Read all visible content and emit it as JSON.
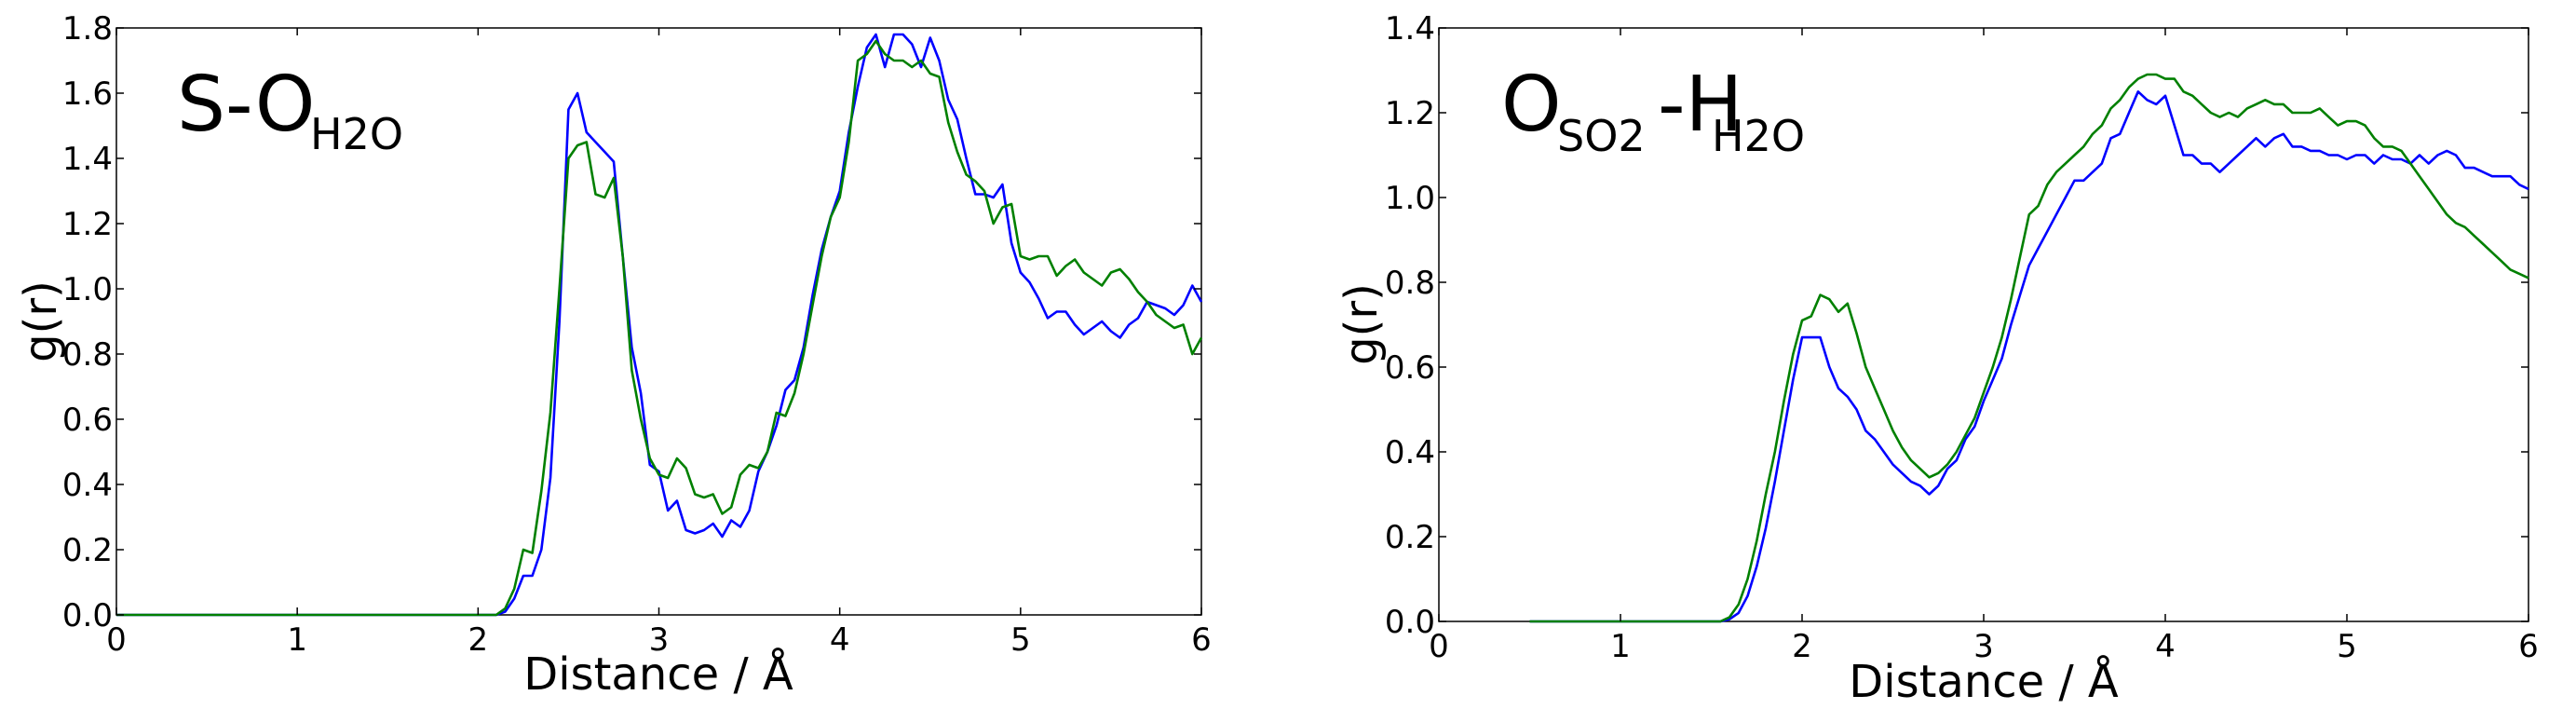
{
  "colors": {
    "series_a": "#0000ff",
    "series_b": "#008000",
    "axes": "#000000"
  },
  "chart_data": [
    {
      "type": "line",
      "title": {
        "main": "S-O",
        "sub": "H2O"
      },
      "xlabel": "Distance / Å",
      "ylabel": "g(r)",
      "xlim": [
        0,
        6
      ],
      "ylim": [
        0,
        1.8
      ],
      "xticks": [
        "0",
        "1",
        "2",
        "3",
        "4",
        "5",
        "6"
      ],
      "yticks": [
        "0.0",
        "0.2",
        "0.4",
        "0.6",
        "0.8",
        "1.0",
        "1.2",
        "1.4",
        "1.6",
        "1.8"
      ],
      "grid": false,
      "series": [
        {
          "color": "#0000ff",
          "x": [
            0,
            2.1,
            2.15,
            2.2,
            2.25,
            2.3,
            2.35,
            2.4,
            2.45,
            2.5,
            2.55,
            2.6,
            2.65,
            2.7,
            2.75,
            2.8,
            2.85,
            2.9,
            2.95,
            3.0,
            3.05,
            3.1,
            3.15,
            3.2,
            3.25,
            3.3,
            3.35,
            3.4,
            3.45,
            3.5,
            3.55,
            3.6,
            3.65,
            3.7,
            3.75,
            3.8,
            3.85,
            3.9,
            3.95,
            4.0,
            4.05,
            4.1,
            4.15,
            4.2,
            4.25,
            4.3,
            4.35,
            4.4,
            4.45,
            4.5,
            4.55,
            4.6,
            4.65,
            4.7,
            4.75,
            4.8,
            4.85,
            4.9,
            4.95,
            5.0,
            5.05,
            5.1,
            5.15,
            5.2,
            5.25,
            5.3,
            5.35,
            5.4,
            5.45,
            5.5,
            5.55,
            5.6,
            5.65,
            5.7,
            5.75,
            5.8,
            5.85,
            5.9,
            5.95,
            6.0
          ],
          "y": [
            0,
            0,
            0.01,
            0.05,
            0.12,
            0.12,
            0.2,
            0.42,
            0.9,
            1.55,
            1.6,
            1.48,
            1.45,
            1.42,
            1.39,
            1.1,
            0.82,
            0.68,
            0.46,
            0.44,
            0.32,
            0.35,
            0.26,
            0.25,
            0.26,
            0.28,
            0.24,
            0.29,
            0.27,
            0.32,
            0.44,
            0.5,
            0.58,
            0.69,
            0.72,
            0.82,
            0.98,
            1.12,
            1.22,
            1.3,
            1.48,
            1.62,
            1.74,
            1.78,
            1.68,
            1.78,
            1.78,
            1.75,
            1.68,
            1.77,
            1.7,
            1.58,
            1.52,
            1.4,
            1.29,
            1.29,
            1.28,
            1.32,
            1.14,
            1.05,
            1.02,
            0.97,
            0.91,
            0.93,
            0.93,
            0.89,
            0.86,
            0.88,
            0.9,
            0.87,
            0.85,
            0.89,
            0.91,
            0.96,
            0.95,
            0.94,
            0.92,
            0.95,
            1.01,
            0.96
          ]
        },
        {
          "color": "#008000",
          "x": [
            0,
            2.1,
            2.15,
            2.2,
            2.25,
            2.3,
            2.35,
            2.4,
            2.45,
            2.5,
            2.55,
            2.6,
            2.65,
            2.7,
            2.75,
            2.8,
            2.85,
            2.9,
            2.95,
            3.0,
            3.05,
            3.1,
            3.15,
            3.2,
            3.25,
            3.3,
            3.35,
            3.4,
            3.45,
            3.5,
            3.55,
            3.6,
            3.65,
            3.7,
            3.75,
            3.8,
            3.85,
            3.9,
            3.95,
            4.0,
            4.05,
            4.1,
            4.15,
            4.2,
            4.25,
            4.3,
            4.35,
            4.4,
            4.45,
            4.5,
            4.55,
            4.6,
            4.65,
            4.7,
            4.75,
            4.8,
            4.85,
            4.9,
            4.95,
            5.0,
            5.05,
            5.1,
            5.15,
            5.2,
            5.25,
            5.3,
            5.35,
            5.4,
            5.45,
            5.5,
            5.55,
            5.6,
            5.65,
            5.7,
            5.75,
            5.8,
            5.85,
            5.9,
            5.95,
            6.0
          ],
          "y": [
            0,
            0,
            0.02,
            0.08,
            0.2,
            0.19,
            0.38,
            0.62,
            1.0,
            1.4,
            1.44,
            1.45,
            1.29,
            1.28,
            1.34,
            1.1,
            0.75,
            0.6,
            0.48,
            0.43,
            0.42,
            0.48,
            0.45,
            0.37,
            0.36,
            0.37,
            0.31,
            0.33,
            0.43,
            0.46,
            0.45,
            0.5,
            0.62,
            0.61,
            0.68,
            0.8,
            0.95,
            1.1,
            1.22,
            1.28,
            1.45,
            1.7,
            1.72,
            1.76,
            1.72,
            1.7,
            1.7,
            1.68,
            1.7,
            1.66,
            1.65,
            1.51,
            1.42,
            1.35,
            1.33,
            1.3,
            1.2,
            1.25,
            1.26,
            1.1,
            1.09,
            1.1,
            1.1,
            1.04,
            1.07,
            1.09,
            1.05,
            1.03,
            1.01,
            1.05,
            1.06,
            1.03,
            0.99,
            0.96,
            0.92,
            0.9,
            0.88,
            0.89,
            0.8,
            0.85
          ]
        }
      ]
    },
    {
      "type": "line",
      "title": {
        "main1": "O",
        "sub1": "SO2",
        "main2": "-H",
        "sub2": "H2O"
      },
      "xlabel": "Distance / Å",
      "ylabel": "g(r)",
      "xlim": [
        0,
        6
      ],
      "ylim": [
        0,
        1.4
      ],
      "xticks": [
        "0",
        "1",
        "2",
        "3",
        "4",
        "5",
        "6"
      ],
      "yticks": [
        "0.0",
        "0.2",
        "0.4",
        "0.6",
        "0.8",
        "1.0",
        "1.2",
        "1.4"
      ],
      "grid": false,
      "series": [
        {
          "color": "#0000ff",
          "x": [
            0.5,
            1.55,
            1.6,
            1.65,
            1.7,
            1.75,
            1.8,
            1.85,
            1.9,
            1.95,
            2.0,
            2.05,
            2.1,
            2.15,
            2.2,
            2.25,
            2.3,
            2.35,
            2.4,
            2.45,
            2.5,
            2.55,
            2.6,
            2.65,
            2.7,
            2.75,
            2.8,
            2.85,
            2.9,
            2.95,
            3.0,
            3.05,
            3.1,
            3.15,
            3.2,
            3.25,
            3.3,
            3.35,
            3.4,
            3.45,
            3.5,
            3.55,
            3.6,
            3.65,
            3.7,
            3.75,
            3.8,
            3.85,
            3.9,
            3.95,
            4.0,
            4.05,
            4.1,
            4.15,
            4.2,
            4.25,
            4.3,
            4.35,
            4.4,
            4.45,
            4.5,
            4.55,
            4.6,
            4.65,
            4.7,
            4.75,
            4.8,
            4.85,
            4.9,
            4.95,
            5.0,
            5.05,
            5.1,
            5.15,
            5.2,
            5.25,
            5.3,
            5.35,
            5.4,
            5.45,
            5.5,
            5.55,
            5.6,
            5.65,
            5.7,
            5.75,
            5.8,
            5.85,
            5.9,
            5.95,
            6.0
          ],
          "y": [
            0,
            0,
            0.005,
            0.02,
            0.06,
            0.13,
            0.22,
            0.33,
            0.45,
            0.57,
            0.67,
            0.67,
            0.67,
            0.6,
            0.55,
            0.53,
            0.5,
            0.45,
            0.43,
            0.4,
            0.37,
            0.35,
            0.33,
            0.32,
            0.3,
            0.32,
            0.36,
            0.38,
            0.43,
            0.46,
            0.52,
            0.57,
            0.62,
            0.7,
            0.77,
            0.84,
            0.88,
            0.92,
            0.96,
            1.0,
            1.04,
            1.04,
            1.06,
            1.08,
            1.14,
            1.15,
            1.2,
            1.25,
            1.23,
            1.22,
            1.24,
            1.17,
            1.1,
            1.1,
            1.08,
            1.08,
            1.06,
            1.08,
            1.1,
            1.12,
            1.14,
            1.12,
            1.14,
            1.15,
            1.12,
            1.12,
            1.11,
            1.11,
            1.1,
            1.1,
            1.09,
            1.1,
            1.1,
            1.08,
            1.1,
            1.09,
            1.09,
            1.08,
            1.1,
            1.08,
            1.1,
            1.11,
            1.1,
            1.07,
            1.07,
            1.06,
            1.05,
            1.05,
            1.05,
            1.03,
            1.02
          ]
        },
        {
          "color": "#008000",
          "x": [
            0.5,
            1.55,
            1.6,
            1.65,
            1.7,
            1.75,
            1.8,
            1.85,
            1.9,
            1.95,
            2.0,
            2.05,
            2.1,
            2.15,
            2.2,
            2.25,
            2.3,
            2.35,
            2.4,
            2.45,
            2.5,
            2.55,
            2.6,
            2.65,
            2.7,
            2.75,
            2.8,
            2.85,
            2.9,
            2.95,
            3.0,
            3.05,
            3.1,
            3.15,
            3.2,
            3.25,
            3.3,
            3.35,
            3.4,
            3.45,
            3.5,
            3.55,
            3.6,
            3.65,
            3.7,
            3.75,
            3.8,
            3.85,
            3.9,
            3.95,
            4.0,
            4.05,
            4.1,
            4.15,
            4.2,
            4.25,
            4.3,
            4.35,
            4.4,
            4.45,
            4.5,
            4.55,
            4.6,
            4.65,
            4.7,
            4.75,
            4.8,
            4.85,
            4.9,
            4.95,
            5.0,
            5.05,
            5.1,
            5.15,
            5.2,
            5.25,
            5.3,
            5.35,
            5.4,
            5.45,
            5.5,
            5.55,
            5.6,
            5.65,
            5.7,
            5.75,
            5.8,
            5.85,
            5.9,
            5.95,
            6.0
          ],
          "y": [
            0,
            0,
            0.01,
            0.04,
            0.1,
            0.19,
            0.3,
            0.4,
            0.52,
            0.63,
            0.71,
            0.72,
            0.77,
            0.76,
            0.73,
            0.75,
            0.68,
            0.6,
            0.55,
            0.5,
            0.45,
            0.41,
            0.38,
            0.36,
            0.34,
            0.35,
            0.37,
            0.4,
            0.44,
            0.48,
            0.54,
            0.6,
            0.67,
            0.76,
            0.86,
            0.96,
            0.98,
            1.03,
            1.06,
            1.08,
            1.1,
            1.12,
            1.15,
            1.17,
            1.21,
            1.23,
            1.26,
            1.28,
            1.29,
            1.29,
            1.28,
            1.28,
            1.25,
            1.24,
            1.22,
            1.2,
            1.19,
            1.2,
            1.19,
            1.21,
            1.22,
            1.23,
            1.22,
            1.22,
            1.2,
            1.2,
            1.2,
            1.21,
            1.19,
            1.17,
            1.18,
            1.18,
            1.17,
            1.14,
            1.12,
            1.12,
            1.11,
            1.08,
            1.05,
            1.02,
            0.99,
            0.96,
            0.94,
            0.93,
            0.91,
            0.89,
            0.87,
            0.85,
            0.83,
            0.82,
            0.81
          ]
        }
      ]
    }
  ]
}
